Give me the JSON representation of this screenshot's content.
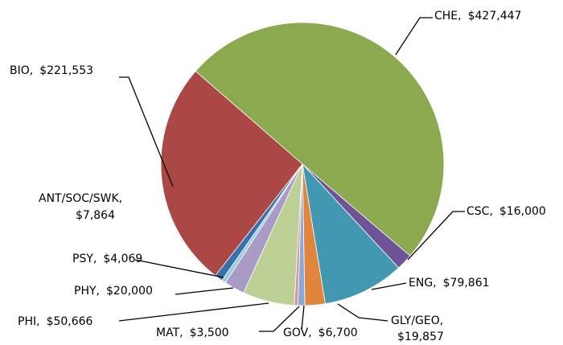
{
  "chart_data": {
    "type": "pie",
    "categories": [
      "CHE,",
      "CSC,",
      "ENG,",
      "GLY/GEO,",
      "GOV,",
      "MAT,",
      "PHI,",
      "PHY,",
      "PSY,",
      "ANT/SOC/SWK,",
      "BIO,"
    ],
    "values": [
      427447,
      16000,
      79861,
      19857,
      6700,
      3500,
      50666,
      20000,
      4069,
      7864,
      221553
    ],
    "value_labels": [
      "$427,447",
      "$16,000",
      "$79,861",
      "$19,857",
      "$6,700",
      "$3,500",
      "$50,666",
      "$20,000",
      "$4,069",
      "$7,864",
      "$221,553"
    ],
    "colors": [
      "#8ba94f",
      "#6e5496",
      "#4298b0",
      "#e0853e",
      "#8aa8d8",
      "#d795a0",
      "#bcd095",
      "#a99bc6",
      "#96cddd",
      "#3a6fad",
      "#ab4744"
    ]
  }
}
